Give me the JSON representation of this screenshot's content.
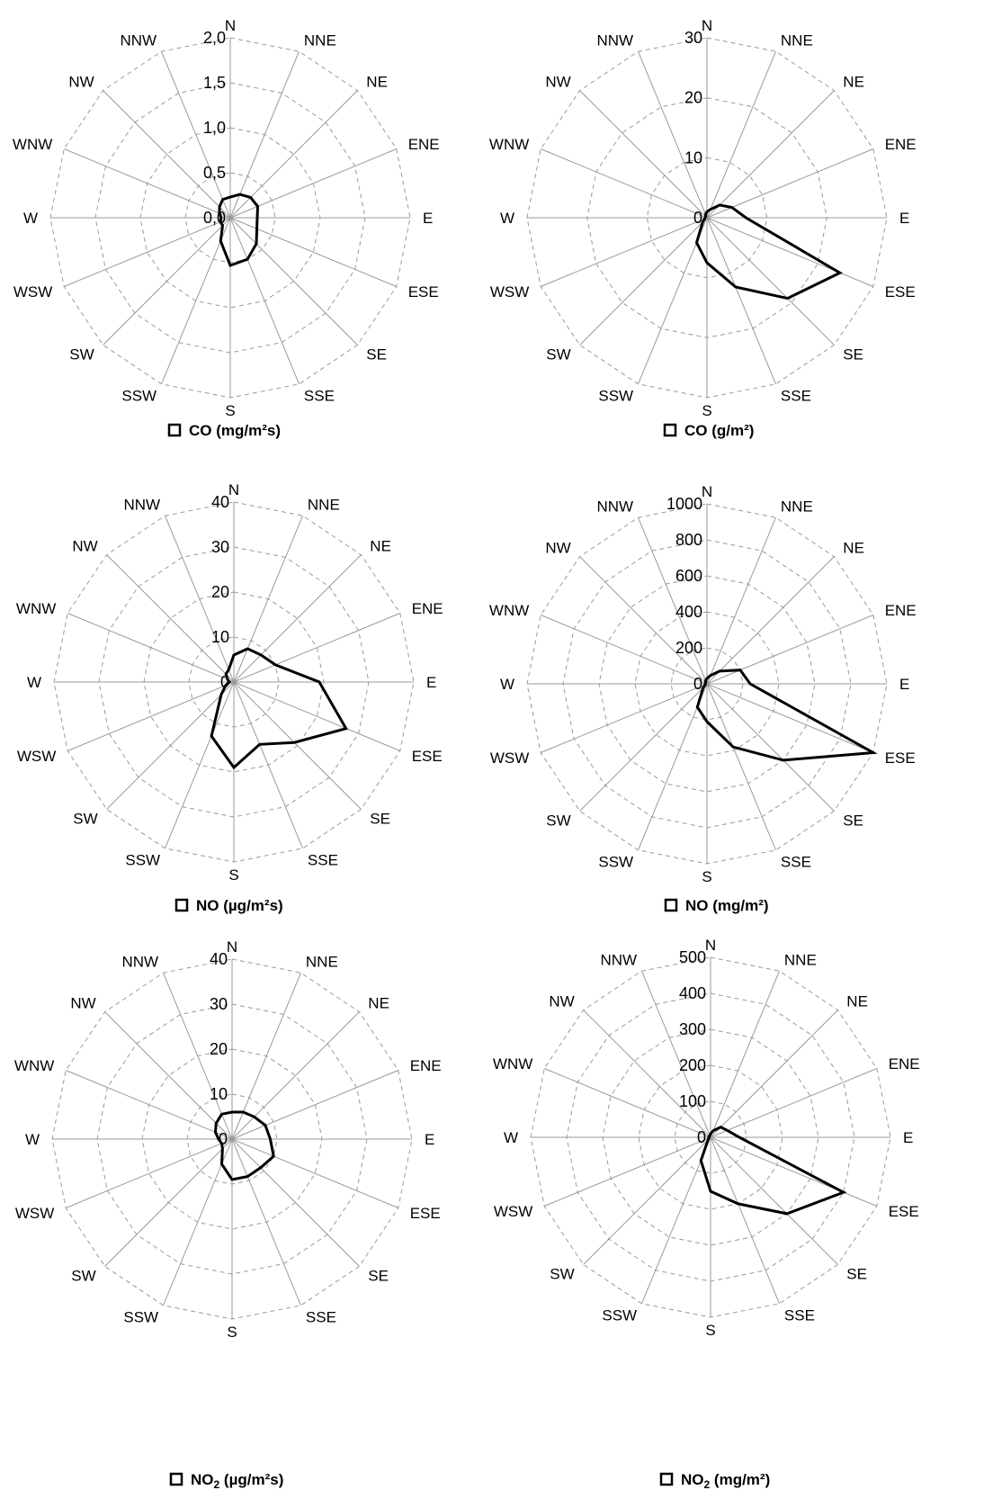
{
  "chart_data": [
    {
      "type": "radar",
      "directions": [
        "N",
        "NNE",
        "NE",
        "ENE",
        "E",
        "ESE",
        "SE",
        "SSE",
        "S",
        "SSW",
        "SW",
        "WSW",
        "W",
        "WNW",
        "NW",
        "NNW"
      ],
      "ticks": [
        "0,0",
        "0,5",
        "1,0",
        "1,5",
        "2,0"
      ],
      "ylim": [
        0,
        2.0
      ],
      "legend": {
        "label": "CO (mg/m²s)"
      },
      "values": [
        0.23,
        0.28,
        0.32,
        0.33,
        0.3,
        0.32,
        0.41,
        0.5,
        0.53,
        0.28,
        0.12,
        0.12,
        0.1,
        0.13,
        0.17,
        0.22
      ]
    },
    {
      "type": "radar",
      "directions": [
        "N",
        "NNE",
        "NE",
        "ENE",
        "E",
        "ESE",
        "SE",
        "SSE",
        "S",
        "SSW",
        "SW",
        "WSW",
        "W",
        "WNW",
        "NW",
        "NNW"
      ],
      "ticks": [
        "0",
        "10",
        "20",
        "30"
      ],
      "ylim": [
        0,
        30
      ],
      "legend": {
        "label": "CO (g/m²)"
      },
      "values": [
        1.0,
        1.5,
        3.0,
        4.5,
        6.5,
        24.0,
        19.0,
        12.5,
        7.5,
        4.5,
        1.0,
        0.4,
        0.3,
        0.3,
        0.3,
        0.6
      ]
    },
    {
      "type": "radar",
      "directions": [
        "N",
        "NNE",
        "NE",
        "ENE",
        "E",
        "ESE",
        "SE",
        "SSE",
        "S",
        "SSW",
        "SW",
        "WSW",
        "W",
        "WNW",
        "NW",
        "NNW"
      ],
      "ticks": [
        "0",
        "10",
        "20",
        "30",
        "40"
      ],
      "ylim": [
        0,
        40
      ],
      "legend": {
        "label": "NO (µg/m²s)",
        "main": "NO",
        "sub": "",
        "unit": "(µg/m²s)"
      },
      "values": [
        6.0,
        8.0,
        8.5,
        10.0,
        19.0,
        27.0,
        19.0,
        15.0,
        19.0,
        13.0,
        4.0,
        2.0,
        1.0,
        1.5,
        2.5,
        3.0
      ]
    },
    {
      "type": "radar",
      "directions": [
        "N",
        "NNE",
        "NE",
        "ENE",
        "E",
        "ESE",
        "SE",
        "SSE",
        "S",
        "SSW",
        "SW",
        "WSW",
        "W",
        "WNW",
        "NW",
        "NNW"
      ],
      "ticks": [
        "0",
        "200",
        "400",
        "600",
        "800",
        "1000"
      ],
      "ylim": [
        0,
        1000
      ],
      "legend": {
        "label": "NO (mg/m²)",
        "main": "NO",
        "sub": "",
        "unit": "(mg/m²)"
      },
      "values": [
        30,
        50,
        100,
        200,
        240,
        1000,
        600,
        380,
        210,
        140,
        30,
        10,
        10,
        10,
        10,
        20
      ]
    },
    {
      "type": "radar",
      "directions": [
        "N",
        "NNE",
        "NE",
        "ENE",
        "E",
        "ESE",
        "SE",
        "SSE",
        "S",
        "SSW",
        "SW",
        "WSW",
        "W",
        "WNW",
        "NW",
        "NNW"
      ],
      "ticks": [
        "0",
        "10",
        "20",
        "30",
        "40"
      ],
      "ylim": [
        0,
        40
      ],
      "legend": {
        "label": "NO2 (µg/m²s)",
        "main": "NO",
        "sub": "2",
        "unit": "(µg/m²s)"
      },
      "values": [
        6.0,
        6.5,
        7.0,
        8.0,
        8.5,
        10.0,
        9.0,
        9.0,
        9.0,
        6.0,
        3.0,
        2.5,
        3.0,
        4.0,
        5.0,
        6.0
      ]
    },
    {
      "type": "radar",
      "directions": [
        "N",
        "NNE",
        "NE",
        "ENE",
        "E",
        "ESE",
        "SE",
        "SSE",
        "S",
        "SSW",
        "SW",
        "WSW",
        "W",
        "WNW",
        "NW",
        "NNW"
      ],
      "ticks": [
        "0",
        "100",
        "200",
        "300",
        "400",
        "500"
      ],
      "ylim": [
        0,
        500
      ],
      "legend": {
        "label": "NO2 (mg/m²)",
        "main": "NO",
        "sub": "2",
        "unit": "(mg/m²)"
      },
      "values": [
        10,
        20,
        40,
        50,
        80,
        400,
        300,
        200,
        150,
        70,
        10,
        5,
        5,
        5,
        5,
        5
      ]
    }
  ]
}
